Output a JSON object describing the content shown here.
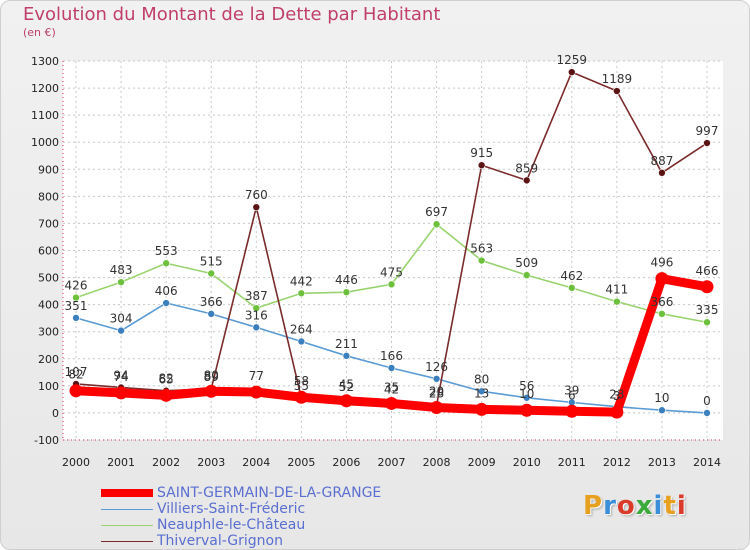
{
  "header": {
    "title": "Evolution du Montant de la Dette par Habitant",
    "subtitle": "(en €)"
  },
  "logo": {
    "text": "Proxiti",
    "colors": [
      "#e8a020",
      "#3a8fd8",
      "#d93a2a",
      "#3aaa3a",
      "#3a8fd8",
      "#e8a020",
      "#d93a2a"
    ]
  },
  "chart_data": {
    "type": "line",
    "title": "Evolution du Montant de la Dette par Habitant",
    "subtitle": "(en €)",
    "xlabel": "",
    "ylabel": "",
    "x": [
      "2000",
      "2001",
      "2002",
      "2003",
      "2004",
      "2005",
      "2006",
      "2007",
      "2008",
      "2009",
      "2010",
      "2011",
      "2012",
      "2013",
      "2014"
    ],
    "y_ticks": [
      -100,
      0,
      100,
      200,
      300,
      400,
      500,
      600,
      700,
      800,
      900,
      1000,
      1100,
      1200,
      1300
    ],
    "ylim": [
      -100,
      1300
    ],
    "grid": true,
    "legend_position": "bottom-left",
    "series": [
      {
        "name": "Villiers-Saint-Fréderic",
        "color": "#5b9bd5",
        "marker_color": "#3b7fbf",
        "values": [
          351,
          304,
          406,
          366,
          316,
          264,
          211,
          166,
          126,
          80,
          56,
          39,
          23,
          10,
          0
        ],
        "labels": [
          "351",
          "304",
          "406",
          "366",
          "316",
          "264",
          "211",
          "166",
          "126",
          "80",
          "56",
          "39",
          "23",
          "10",
          "0"
        ]
      },
      {
        "name": "Neauphle-le-Château",
        "color": "#99d36f",
        "marker_color": "#6cc03c",
        "values": [
          426,
          483,
          553,
          515,
          387,
          442,
          446,
          475,
          697,
          563,
          509,
          462,
          411,
          366,
          335
        ],
        "labels": [
          "426",
          "483",
          "553",
          "515",
          "387",
          "442",
          "446",
          "475",
          "697",
          "563",
          "509",
          "462",
          "411",
          "366",
          "335"
        ]
      },
      {
        "name": "Thiverval-Grignon",
        "color": "#7b2b2b",
        "marker_color": "#5a1414",
        "values": [
          107,
          94,
          82,
          89,
          760,
          55,
          52,
          42,
          28,
          915,
          859,
          1259,
          1189,
          887,
          997
        ],
        "labels": [
          "107",
          "94",
          "82",
          "89",
          "760",
          "55",
          "52",
          "42",
          "28",
          "915",
          "859",
          "1259",
          "1189",
          "887",
          "997"
        ]
      },
      {
        "name": "SAINT-GERMAIN-DE-LA-GRANGE",
        "color": "#ff0000",
        "marker_color": "#ff0000",
        "values": [
          82,
          74,
          65,
          80,
          77,
          58,
          45,
          35,
          20,
          13,
          10,
          6,
          3,
          496,
          466
        ],
        "labels": [
          "82",
          "74",
          "65",
          "80",
          "77",
          "58",
          "45",
          "35",
          "20",
          "13",
          "10",
          "6",
          "3",
          "496",
          "466"
        ]
      }
    ]
  },
  "legend": {
    "items": [
      {
        "label": "SAINT-GERMAIN-DE-LA-GRANGE",
        "color": "#ff0000",
        "weight": "thick"
      },
      {
        "label": "Villiers-Saint-Fréderic",
        "color": "#5b9bd5",
        "weight": "thin"
      },
      {
        "label": "Neauphle-le-Château",
        "color": "#99d36f",
        "weight": "thin"
      },
      {
        "label": "Thiverval-Grignon",
        "color": "#7b2b2b",
        "weight": "thin"
      }
    ]
  }
}
